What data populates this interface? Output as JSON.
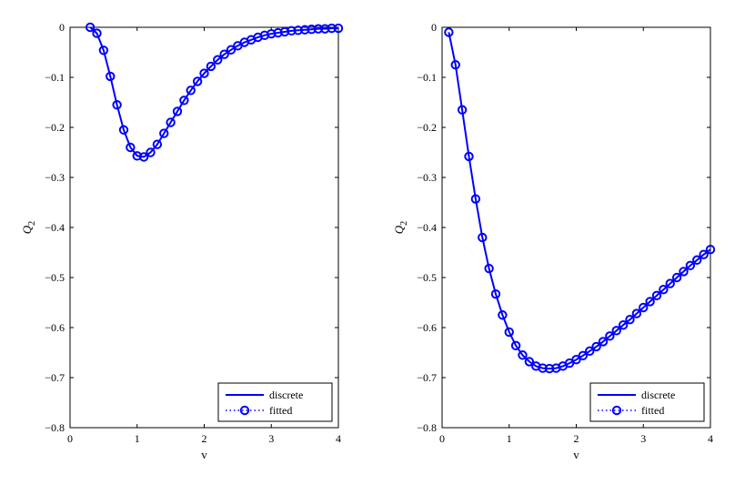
{
  "chart_data": [
    {
      "type": "line",
      "xlabel": "v",
      "ylabel": "Q",
      "ylabel_sub": "2",
      "xlim": [
        0,
        4
      ],
      "ylim": [
        -0.8,
        0
      ],
      "xticks": [
        "0",
        "1",
        "2",
        "3",
        "4"
      ],
      "yticks": [
        "0",
        "−0.1",
        "−0.2",
        "−0.3",
        "−0.4",
        "−0.5",
        "−0.6",
        "−0.7",
        "−0.8"
      ],
      "grid": false,
      "legend_position": "bottom-right",
      "legend": [
        "discrete",
        "fitted"
      ],
      "color": "#0000ff",
      "series": [
        {
          "name": "discrete",
          "style": "solid line",
          "x": [
            0.3,
            0.4,
            0.5,
            0.6,
            0.7,
            0.8,
            0.9,
            1.0,
            1.1,
            1.2,
            1.3,
            1.4,
            1.5,
            1.6,
            1.7,
            1.8,
            1.9,
            2.0,
            2.1,
            2.2,
            2.3,
            2.4,
            2.5,
            2.6,
            2.7,
            2.8,
            2.9,
            3.0,
            3.1,
            3.2,
            3.3,
            3.4,
            3.5,
            3.6,
            3.7,
            3.8,
            3.9,
            4.0
          ],
          "y": [
            0.0,
            -0.012,
            -0.046,
            -0.098,
            -0.155,
            -0.205,
            -0.24,
            -0.257,
            -0.259,
            -0.25,
            -0.234,
            -0.212,
            -0.19,
            -0.168,
            -0.146,
            -0.126,
            -0.108,
            -0.092,
            -0.078,
            -0.065,
            -0.054,
            -0.045,
            -0.037,
            -0.03,
            -0.025,
            -0.02,
            -0.016,
            -0.013,
            -0.011,
            -0.009,
            -0.007,
            -0.006,
            -0.005,
            -0.004,
            -0.003,
            -0.003,
            -0.002,
            -0.002
          ]
        },
        {
          "name": "fitted",
          "style": "dotted line with circle markers",
          "x": [
            0.3,
            0.4,
            0.5,
            0.6,
            0.7,
            0.8,
            0.9,
            1.0,
            1.1,
            1.2,
            1.3,
            1.4,
            1.5,
            1.6,
            1.7,
            1.8,
            1.9,
            2.0,
            2.1,
            2.2,
            2.3,
            2.4,
            2.5,
            2.6,
            2.7,
            2.8,
            2.9,
            3.0,
            3.1,
            3.2,
            3.3,
            3.4,
            3.5,
            3.6,
            3.7,
            3.8,
            3.9,
            4.0
          ],
          "y": [
            0.0,
            -0.012,
            -0.046,
            -0.098,
            -0.155,
            -0.205,
            -0.24,
            -0.257,
            -0.259,
            -0.25,
            -0.234,
            -0.212,
            -0.19,
            -0.168,
            -0.146,
            -0.126,
            -0.108,
            -0.092,
            -0.078,
            -0.065,
            -0.054,
            -0.045,
            -0.037,
            -0.03,
            -0.025,
            -0.02,
            -0.016,
            -0.013,
            -0.011,
            -0.009,
            -0.007,
            -0.006,
            -0.005,
            -0.004,
            -0.003,
            -0.003,
            -0.002,
            -0.002
          ]
        }
      ]
    },
    {
      "type": "line",
      "xlabel": "v",
      "ylabel": "Q",
      "ylabel_sub": "2",
      "xlim": [
        0,
        4
      ],
      "ylim": [
        -0.8,
        0
      ],
      "xticks": [
        "0",
        "1",
        "2",
        "3",
        "4"
      ],
      "yticks": [
        "0",
        "−0.1",
        "−0.2",
        "−0.3",
        "−0.4",
        "−0.5",
        "−0.6",
        "−0.7",
        "−0.8"
      ],
      "grid": false,
      "legend_position": "bottom-right",
      "legend": [
        "discrete",
        "fitted"
      ],
      "color": "#0000ff",
      "series": [
        {
          "name": "discrete",
          "style": "solid line",
          "x": [
            0.1,
            0.2,
            0.3,
            0.4,
            0.5,
            0.6,
            0.7,
            0.8,
            0.9,
            1.0,
            1.1,
            1.2,
            1.3,
            1.4,
            1.5,
            1.6,
            1.7,
            1.8,
            1.9,
            2.0,
            2.1,
            2.2,
            2.3,
            2.4,
            2.5,
            2.6,
            2.7,
            2.8,
            2.9,
            3.0,
            3.1,
            3.2,
            3.3,
            3.4,
            3.5,
            3.6,
            3.7,
            3.8,
            3.9,
            4.0
          ],
          "y": [
            -0.01,
            -0.075,
            -0.165,
            -0.258,
            -0.343,
            -0.42,
            -0.482,
            -0.533,
            -0.575,
            -0.609,
            -0.636,
            -0.655,
            -0.668,
            -0.677,
            -0.681,
            -0.682,
            -0.681,
            -0.677,
            -0.671,
            -0.664,
            -0.656,
            -0.647,
            -0.638,
            -0.628,
            -0.617,
            -0.606,
            -0.595,
            -0.584,
            -0.572,
            -0.56,
            -0.548,
            -0.536,
            -0.524,
            -0.512,
            -0.5,
            -0.488,
            -0.476,
            -0.465,
            -0.454,
            -0.444
          ]
        },
        {
          "name": "fitted",
          "style": "dotted line with circle markers",
          "x": [
            0.1,
            0.2,
            0.3,
            0.4,
            0.5,
            0.6,
            0.7,
            0.8,
            0.9,
            1.0,
            1.1,
            1.2,
            1.3,
            1.4,
            1.5,
            1.6,
            1.7,
            1.8,
            1.9,
            2.0,
            2.1,
            2.2,
            2.3,
            2.4,
            2.5,
            2.6,
            2.7,
            2.8,
            2.9,
            3.0,
            3.1,
            3.2,
            3.3,
            3.4,
            3.5,
            3.6,
            3.7,
            3.8,
            3.9,
            4.0
          ],
          "y": [
            -0.01,
            -0.075,
            -0.165,
            -0.258,
            -0.343,
            -0.42,
            -0.482,
            -0.533,
            -0.575,
            -0.609,
            -0.636,
            -0.655,
            -0.668,
            -0.677,
            -0.681,
            -0.682,
            -0.681,
            -0.677,
            -0.671,
            -0.664,
            -0.656,
            -0.647,
            -0.638,
            -0.628,
            -0.617,
            -0.606,
            -0.595,
            -0.584,
            -0.572,
            -0.56,
            -0.548,
            -0.536,
            -0.524,
            -0.512,
            -0.5,
            -0.488,
            -0.476,
            -0.465,
            -0.454,
            -0.444
          ]
        }
      ]
    }
  ]
}
